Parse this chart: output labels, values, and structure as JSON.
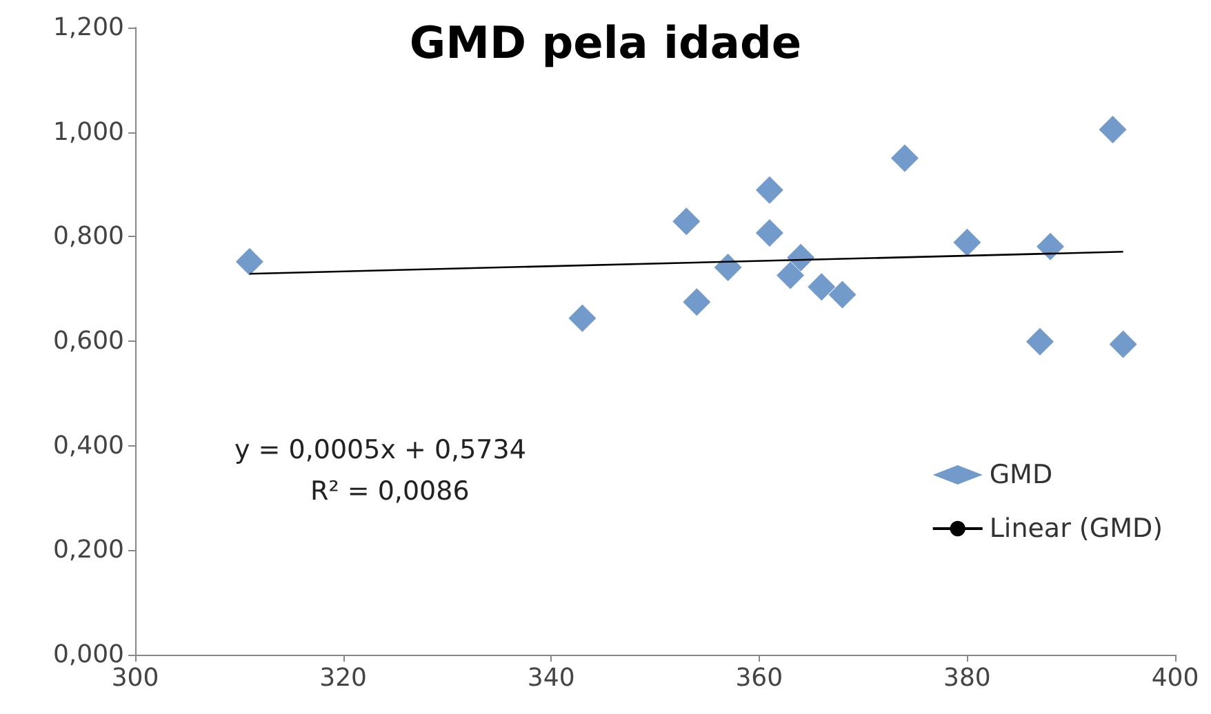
{
  "chart_data": {
    "type": "scatter",
    "title": "GMD pela idade",
    "xlim": [
      300,
      400
    ],
    "xticks": [
      300,
      320,
      340,
      360,
      380,
      400
    ],
    "ylim": [
      0,
      1.2
    ],
    "yticks": [
      {
        "value": 0,
        "label": "0,000"
      },
      {
        "value": 0.2,
        "label": "0,200"
      },
      {
        "value": 0.4,
        "label": "0,400"
      },
      {
        "value": 0.6,
        "label": "0,600"
      },
      {
        "value": 0.8,
        "label": "0,800"
      },
      {
        "value": 1,
        "label": "1,000"
      },
      {
        "value": 1.2,
        "label": "1,200"
      }
    ],
    "grid": false,
    "legend": "right",
    "marker": "diamond",
    "annotations": [
      "y = 0,0005x + 0,5734",
      "R² = 0,0086"
    ],
    "series": [
      {
        "name": "GMD",
        "color": "#4f81bd",
        "x": [
          311,
          343,
          353,
          354,
          357,
          361,
          361,
          364,
          363,
          366,
          368,
          374,
          380,
          387,
          388,
          394,
          395
        ],
        "values": [
          0.752,
          0.644,
          0.829,
          0.675,
          0.741,
          0.889,
          0.807,
          0.76,
          0.726,
          0.704,
          0.689,
          0.95,
          0.789,
          0.599,
          0.781,
          1.005,
          0.594
        ]
      },
      {
        "name": "Linear (GMD)",
        "type": "line",
        "color": "#000000",
        "marker": "none",
        "x": [
          311,
          395
        ],
        "values": [
          0.729,
          0.771
        ]
      }
    ]
  }
}
